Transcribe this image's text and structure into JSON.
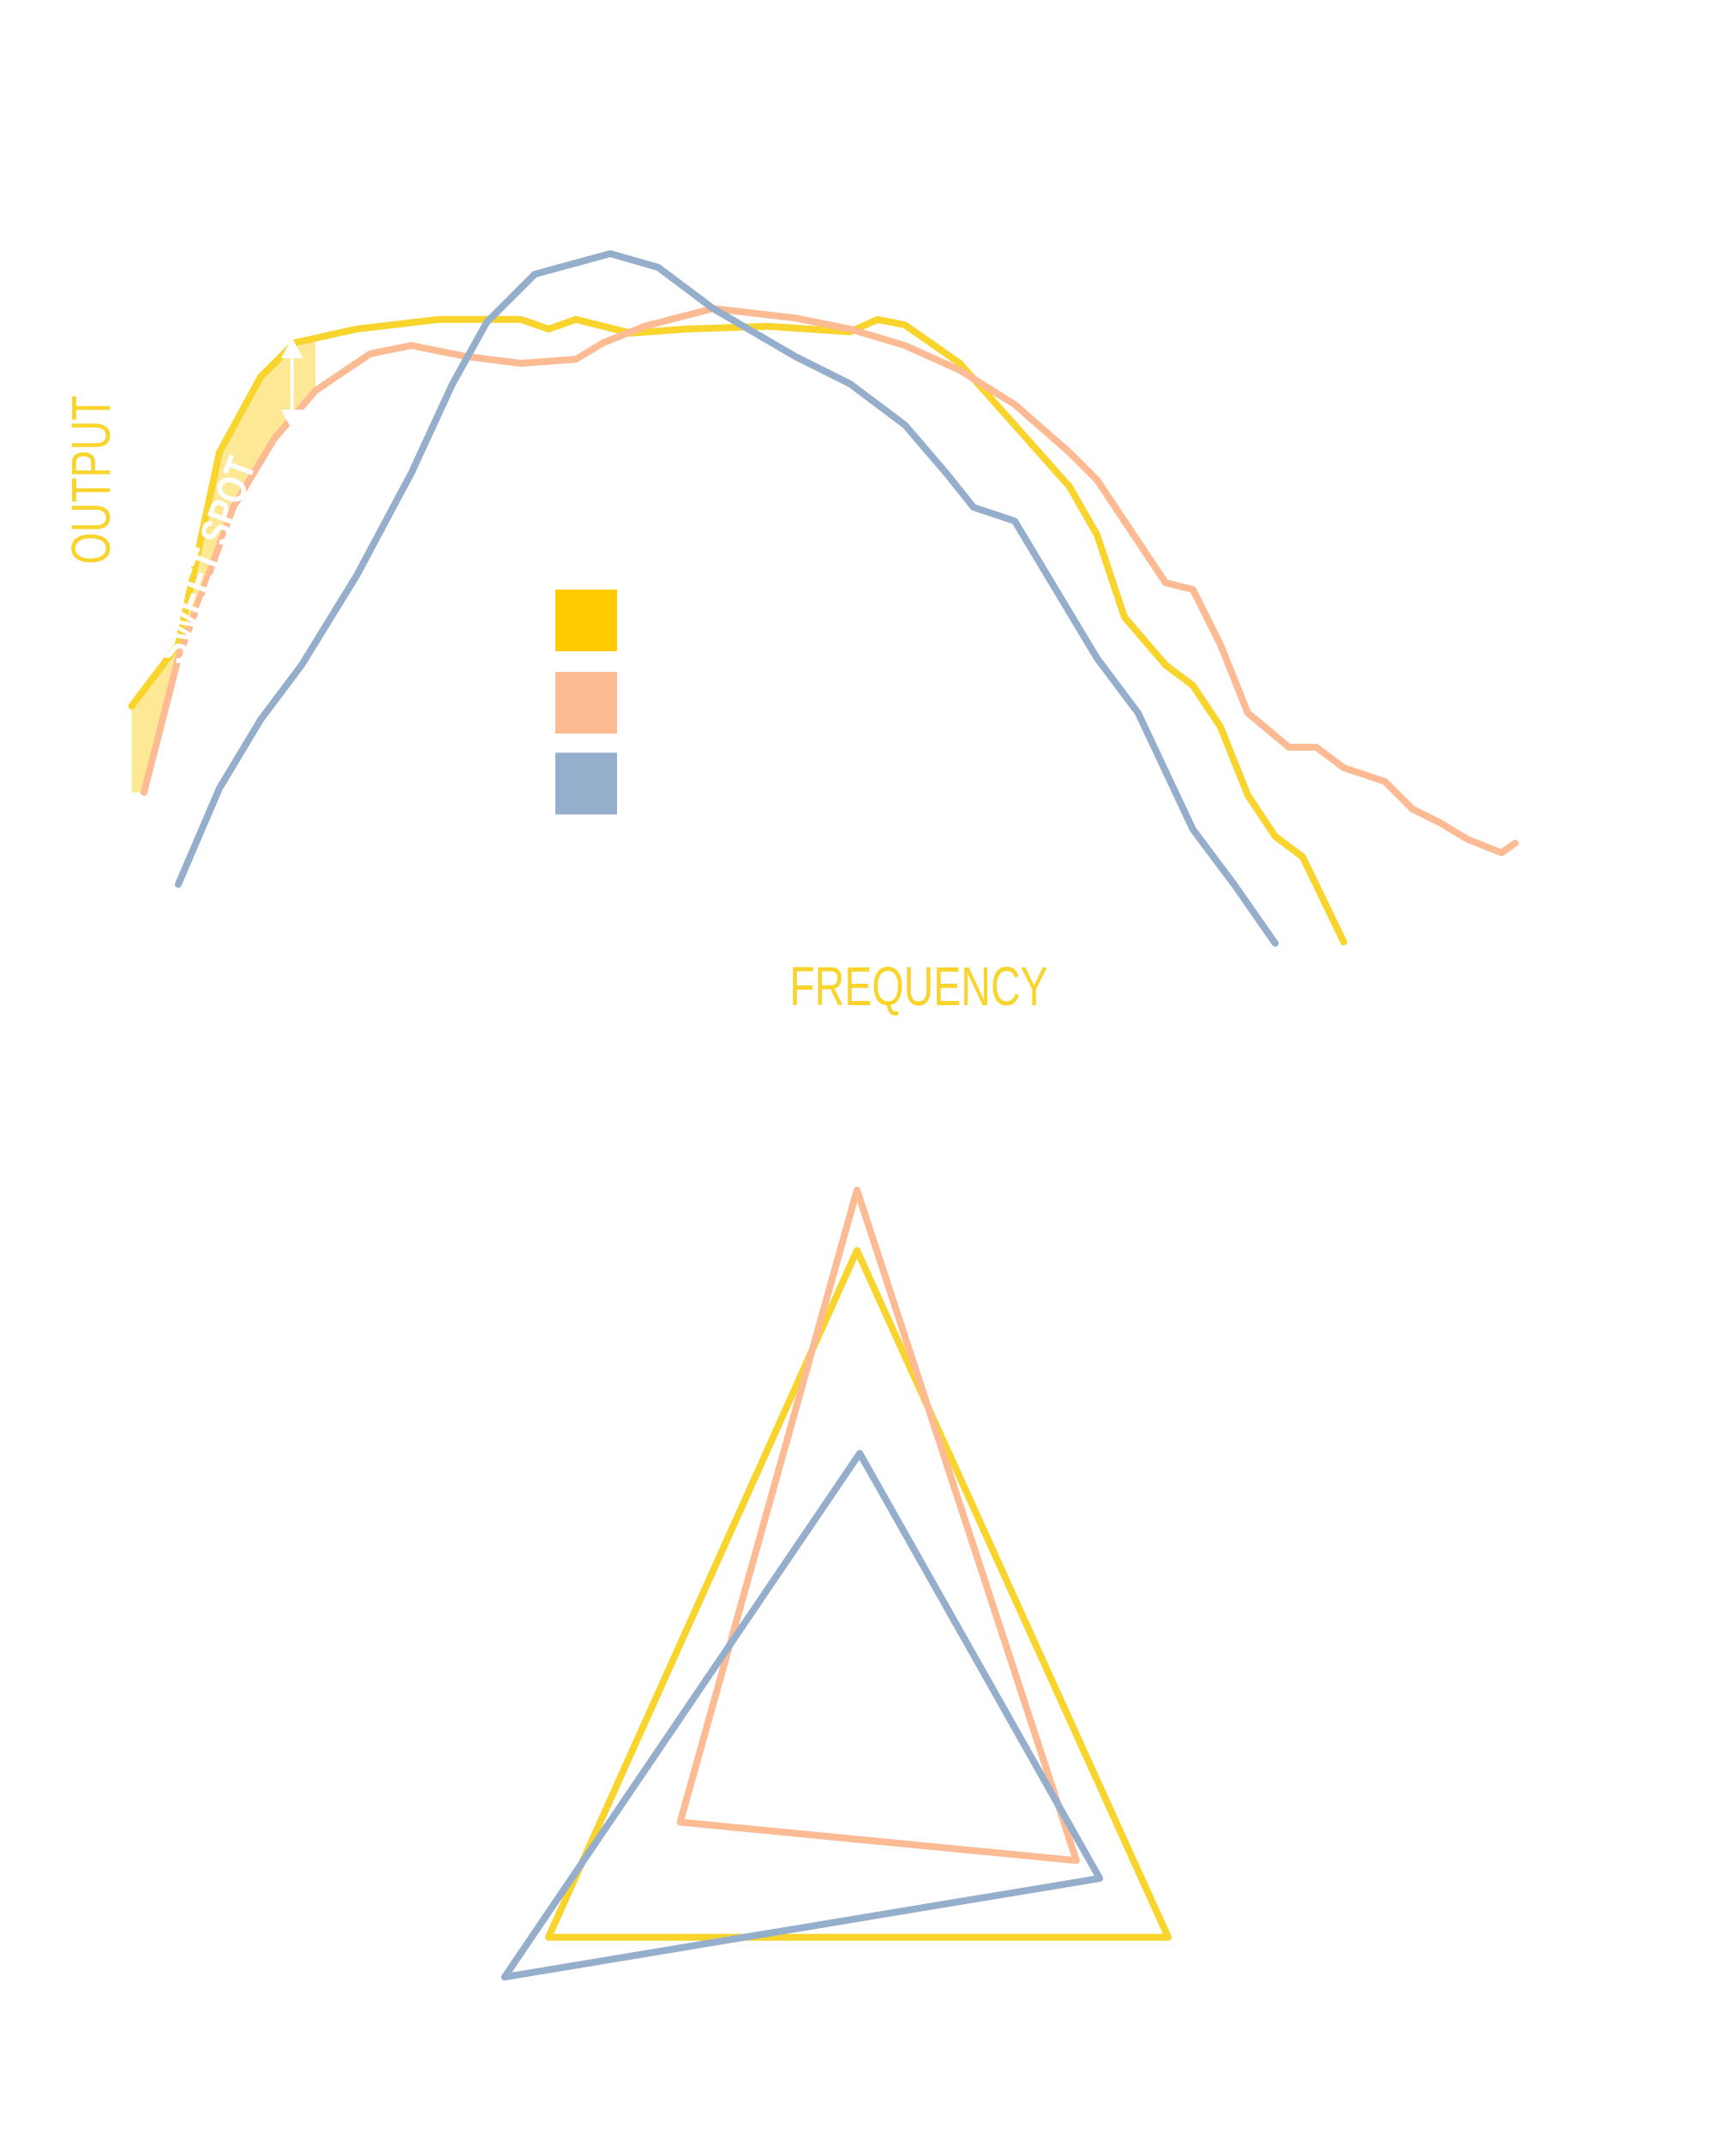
{
  "labels": {
    "y_axis": "OUTPUT",
    "annotation": "SWEET SPOT",
    "x_axis": "FREQUENCY"
  }
}
